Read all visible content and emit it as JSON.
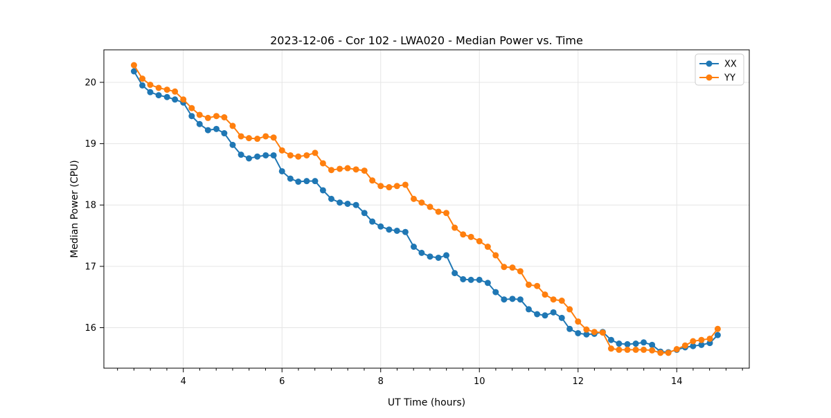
{
  "chart_data": {
    "type": "line",
    "title": "2023-12-06 - Cor 102 - LWA020 - Median Power vs. Time",
    "xlabel": "UT Time (hours)",
    "ylabel": "Median Power (CPU)",
    "xlim": [
      2.39,
      15.47
    ],
    "ylim": [
      15.34,
      20.53
    ],
    "x_ticks": [
      4,
      6,
      8,
      10,
      12,
      14
    ],
    "y_ticks": [
      16,
      17,
      18,
      19,
      20
    ],
    "x_minor_tick_step": 0.3333,
    "grid": true,
    "legend_position": "upper right",
    "marker": "circle",
    "x": [
      3.0,
      3.17,
      3.33,
      3.5,
      3.67,
      3.83,
      4.0,
      4.17,
      4.33,
      4.5,
      4.67,
      4.83,
      5.0,
      5.17,
      5.33,
      5.5,
      5.67,
      5.83,
      6.0,
      6.17,
      6.33,
      6.5,
      6.67,
      6.83,
      7.0,
      7.17,
      7.33,
      7.5,
      7.67,
      7.83,
      8.0,
      8.17,
      8.33,
      8.5,
      8.67,
      8.83,
      9.0,
      9.17,
      9.33,
      9.5,
      9.67,
      9.83,
      10.0,
      10.17,
      10.33,
      10.5,
      10.67,
      10.83,
      11.0,
      11.17,
      11.33,
      11.5,
      11.67,
      11.83,
      12.0,
      12.17,
      12.33,
      12.5,
      12.67,
      12.83,
      13.0,
      13.17,
      13.33,
      13.5,
      13.67,
      13.83,
      14.0,
      14.17,
      14.33,
      14.5,
      14.67,
      14.83
    ],
    "series": [
      {
        "name": "XX",
        "color": "#1f77b4",
        "values": [
          20.18,
          19.95,
          19.84,
          19.79,
          19.76,
          19.72,
          19.67,
          19.45,
          19.32,
          19.22,
          19.24,
          19.17,
          18.98,
          18.82,
          18.76,
          18.79,
          18.81,
          18.81,
          18.55,
          18.43,
          18.38,
          18.39,
          18.39,
          18.24,
          18.1,
          18.04,
          18.02,
          18.0,
          17.87,
          17.73,
          17.65,
          17.6,
          17.58,
          17.56,
          17.32,
          17.22,
          17.16,
          17.14,
          17.18,
          16.89,
          16.79,
          16.78,
          16.78,
          16.73,
          16.58,
          16.46,
          16.47,
          16.46,
          16.3,
          16.22,
          16.2,
          16.25,
          16.16,
          15.98,
          15.91,
          15.89,
          15.9,
          15.93,
          15.8,
          15.74,
          15.73,
          15.74,
          15.76,
          15.72,
          15.61,
          15.6,
          15.64,
          15.68,
          15.7,
          15.72,
          15.75,
          15.88
        ]
      },
      {
        "name": "YY",
        "color": "#ff7f0e",
        "values": [
          20.28,
          20.06,
          19.96,
          19.91,
          19.88,
          19.85,
          19.72,
          19.58,
          19.47,
          19.42,
          19.45,
          19.43,
          19.29,
          19.12,
          19.09,
          19.08,
          19.12,
          19.1,
          18.89,
          18.81,
          18.79,
          18.81,
          18.85,
          18.68,
          18.57,
          18.59,
          18.6,
          18.58,
          18.56,
          18.4,
          18.31,
          18.29,
          18.31,
          18.33,
          18.1,
          18.04,
          17.97,
          17.89,
          17.87,
          17.63,
          17.52,
          17.48,
          17.41,
          17.32,
          17.18,
          16.99,
          16.98,
          16.92,
          16.7,
          16.68,
          16.54,
          16.46,
          16.44,
          16.3,
          16.1,
          15.97,
          15.93,
          15.92,
          15.66,
          15.64,
          15.64,
          15.64,
          15.64,
          15.63,
          15.59,
          15.59,
          15.65,
          15.71,
          15.78,
          15.8,
          15.82,
          15.98
        ]
      }
    ]
  }
}
